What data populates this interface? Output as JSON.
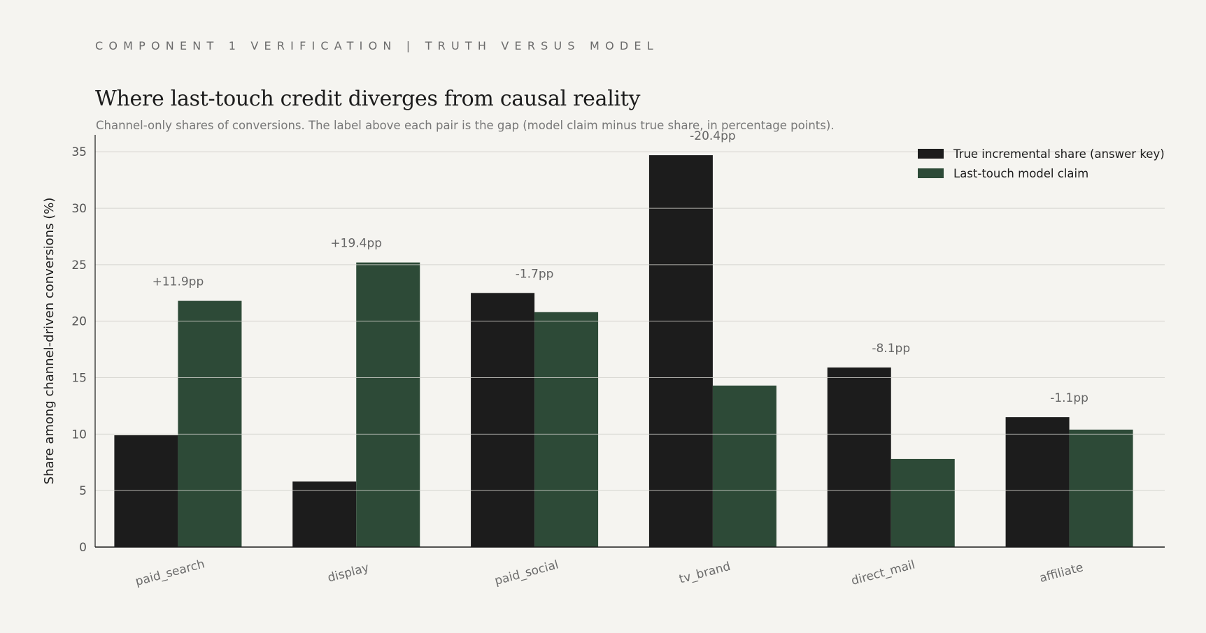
{
  "header": {
    "eyebrow": "COMPONENT 1 VERIFICATION | TRUTH VERSUS MODEL",
    "title": "Where last-touch credit diverges from causal reality",
    "subtitle": "Channel-only shares of conversions. The label above each pair is the gap (model claim minus true share, in percentage points)."
  },
  "colors": {
    "truth": "#1c1c1c",
    "model": "#2d4a37",
    "grid": "#dcdbd6",
    "axis": "#1c1c1c"
  },
  "chart_data": {
    "type": "bar",
    "categories": [
      "paid_search",
      "display",
      "paid_social",
      "tv_brand",
      "direct_mail",
      "affiliate"
    ],
    "series": [
      {
        "name": "True incremental share (answer key)",
        "values": [
          9.9,
          5.8,
          22.5,
          34.7,
          15.9,
          11.5
        ]
      },
      {
        "name": "Last-touch model claim",
        "values": [
          21.8,
          25.2,
          20.8,
          14.3,
          7.8,
          10.4
        ]
      }
    ],
    "gap_labels": [
      "+11.9pp",
      "+19.4pp",
      "-1.7pp",
      "-20.4pp",
      "-8.1pp",
      "-1.1pp"
    ],
    "ylabel": "Share among channel-driven conversions (%)",
    "xlabel": "",
    "ylim": [
      0,
      36.5
    ],
    "yticks": [
      0,
      5,
      10,
      15,
      20,
      25,
      30,
      35
    ],
    "grid": true,
    "legend_position": "top-right"
  }
}
